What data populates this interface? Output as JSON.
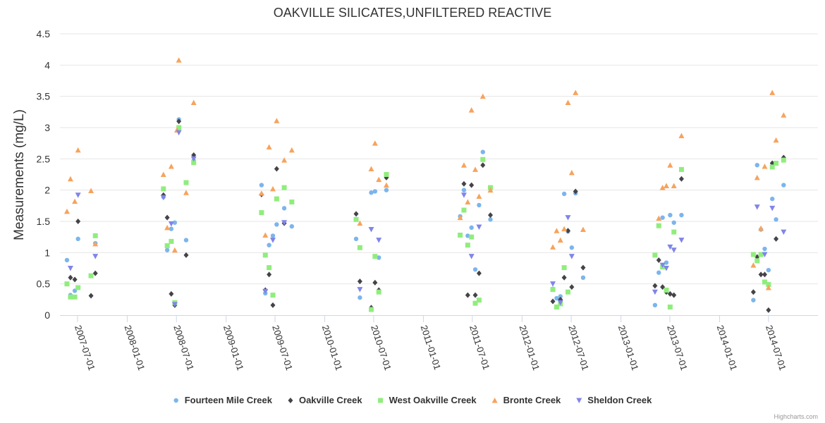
{
  "chart_data": {
    "type": "scatter",
    "title": "OAKVILLE SILICATES,UNFILTERED REACTIVE",
    "ylabel": "Measurements (mg/L)",
    "xlabel": "",
    "ylim": [
      0,
      4.5
    ],
    "yticks": [
      "0",
      "0.5",
      "1",
      "1.5",
      "2",
      "2.5",
      "3",
      "3.5",
      "4",
      "4.5"
    ],
    "xlim": [
      "2007-04-27",
      "2014-12-31"
    ],
    "xticks": [
      "2007-07-01",
      "2008-01-01",
      "2008-07-01",
      "2009-01-01",
      "2009-07-01",
      "2010-01-01",
      "2010-07-01",
      "2011-01-01",
      "2011-07-01",
      "2012-01-01",
      "2012-07-01",
      "2013-01-01",
      "2013-07-01",
      "2014-01-01",
      "2014-07-01"
    ],
    "grid": "horizontal",
    "legend_position": "bottom",
    "credits": "Highcharts.com",
    "series": [
      {
        "name": "Fourteen Mile Creek",
        "color": "#7cb5ec",
        "marker": "circle",
        "points": [
          [
            "2007-05-23",
            0.88
          ],
          [
            "2007-06-05",
            0.32
          ],
          [
            "2007-06-21",
            0.39
          ],
          [
            "2007-07-03",
            1.22
          ],
          [
            "2007-09-05",
            1.15
          ],
          [
            "2008-05-14",
            1.89
          ],
          [
            "2008-05-28",
            1.04
          ],
          [
            "2008-06-12",
            1.38
          ],
          [
            "2008-06-25",
            1.48
          ],
          [
            "2008-07-10",
            3.13
          ],
          [
            "2008-08-06",
            1.2
          ],
          [
            "2008-09-03",
            2.47
          ],
          [
            "2009-05-12",
            2.08
          ],
          [
            "2009-05-26",
            0.35
          ],
          [
            "2009-06-09",
            1.12
          ],
          [
            "2009-06-23",
            1.27
          ],
          [
            "2009-07-07",
            1.45
          ],
          [
            "2009-08-04",
            1.71
          ],
          [
            "2009-09-01",
            1.42
          ],
          [
            "2010-04-27",
            1.22
          ],
          [
            "2010-05-11",
            0.28
          ],
          [
            "2010-06-22",
            1.96
          ],
          [
            "2010-07-06",
            1.98
          ],
          [
            "2010-07-20",
            0.92
          ],
          [
            "2010-08-17",
            2.0
          ],
          [
            "2011-05-17",
            1.58
          ],
          [
            "2011-05-31",
            2.0
          ],
          [
            "2011-06-14",
            1.27
          ],
          [
            "2011-06-28",
            1.4
          ],
          [
            "2011-07-12",
            0.73
          ],
          [
            "2011-07-26",
            1.76
          ],
          [
            "2011-08-09",
            2.61
          ],
          [
            "2011-09-06",
            1.53
          ],
          [
            "2012-04-24",
            0.42
          ],
          [
            "2012-05-08",
            0.27
          ],
          [
            "2012-05-22",
            0.3
          ],
          [
            "2012-06-05",
            1.94
          ],
          [
            "2012-06-19",
            1.34
          ],
          [
            "2012-07-03",
            1.08
          ],
          [
            "2012-07-17",
            1.95
          ],
          [
            "2012-08-14",
            0.6
          ],
          [
            "2013-05-07",
            0.16
          ],
          [
            "2013-05-21",
            0.68
          ],
          [
            "2013-06-04",
            1.56
          ],
          [
            "2013-06-18",
            0.84
          ],
          [
            "2013-07-02",
            1.6
          ],
          [
            "2013-07-16",
            1.48
          ],
          [
            "2013-08-13",
            1.6
          ],
          [
            "2014-05-06",
            0.24
          ],
          [
            "2014-05-20",
            2.4
          ],
          [
            "2014-06-03",
            1.37
          ],
          [
            "2014-06-17",
            1.06
          ],
          [
            "2014-07-01",
            0.72
          ],
          [
            "2014-07-15",
            1.86
          ],
          [
            "2014-07-29",
            1.53
          ],
          [
            "2014-08-26",
            2.08
          ]
        ]
      },
      {
        "name": "Oakville Creek",
        "color": "#434348",
        "marker": "diamond",
        "points": [
          [
            "2007-06-05",
            0.6
          ],
          [
            "2007-06-21",
            0.57
          ],
          [
            "2007-07-03",
            1.5
          ],
          [
            "2007-08-20",
            0.31
          ],
          [
            "2007-09-05",
            0.67
          ],
          [
            "2008-05-14",
            1.92
          ],
          [
            "2008-05-28",
            1.56
          ],
          [
            "2008-06-12",
            0.34
          ],
          [
            "2008-06-25",
            0.16
          ],
          [
            "2008-07-10",
            3.1
          ],
          [
            "2008-08-06",
            0.96
          ],
          [
            "2008-09-03",
            2.56
          ],
          [
            "2009-05-12",
            1.93
          ],
          [
            "2009-05-26",
            0.4
          ],
          [
            "2009-06-09",
            0.65
          ],
          [
            "2009-06-23",
            0.16
          ],
          [
            "2009-07-07",
            2.34
          ],
          [
            "2009-08-04",
            1.47
          ],
          [
            "2010-04-27",
            1.62
          ],
          [
            "2010-05-11",
            0.54
          ],
          [
            "2010-06-22",
            0.12
          ],
          [
            "2010-07-06",
            0.52
          ],
          [
            "2010-07-20",
            0.4
          ],
          [
            "2010-08-17",
            2.2
          ],
          [
            "2011-05-31",
            2.1
          ],
          [
            "2011-06-14",
            0.32
          ],
          [
            "2011-06-28",
            2.08
          ],
          [
            "2011-07-12",
            0.32
          ],
          [
            "2011-07-26",
            0.67
          ],
          [
            "2011-08-09",
            2.4
          ],
          [
            "2011-09-06",
            1.6
          ],
          [
            "2012-04-24",
            0.22
          ],
          [
            "2012-05-22",
            0.25
          ],
          [
            "2012-06-05",
            0.6
          ],
          [
            "2012-06-19",
            1.35
          ],
          [
            "2012-07-03",
            0.45
          ],
          [
            "2012-07-17",
            1.98
          ],
          [
            "2012-08-14",
            0.76
          ],
          [
            "2013-05-07",
            0.47
          ],
          [
            "2013-05-21",
            0.88
          ],
          [
            "2013-06-04",
            0.45
          ],
          [
            "2013-06-18",
            0.37
          ],
          [
            "2013-07-02",
            0.34
          ],
          [
            "2013-07-16",
            0.32
          ],
          [
            "2013-08-13",
            2.18
          ],
          [
            "2014-05-06",
            0.37
          ],
          [
            "2014-05-20",
            0.93
          ],
          [
            "2014-06-03",
            0.65
          ],
          [
            "2014-06-17",
            0.65
          ],
          [
            "2014-07-01",
            0.08
          ],
          [
            "2014-07-15",
            2.43
          ],
          [
            "2014-07-29",
            1.22
          ],
          [
            "2014-08-26",
            2.52
          ]
        ]
      },
      {
        "name": "West Oakville Creek",
        "color": "#90ed7d",
        "marker": "square",
        "points": [
          [
            "2007-05-23",
            0.5
          ],
          [
            "2007-06-05",
            0.29
          ],
          [
            "2007-06-21",
            0.29
          ],
          [
            "2007-07-03",
            0.44
          ],
          [
            "2007-08-20",
            0.63
          ],
          [
            "2007-09-05",
            1.27
          ],
          [
            "2008-05-14",
            2.02
          ],
          [
            "2008-05-28",
            1.11
          ],
          [
            "2008-06-12",
            1.18
          ],
          [
            "2008-06-25",
            0.2
          ],
          [
            "2008-07-10",
            3.0
          ],
          [
            "2008-08-06",
            2.12
          ],
          [
            "2008-09-03",
            2.44
          ],
          [
            "2009-05-12",
            1.64
          ],
          [
            "2009-05-26",
            0.96
          ],
          [
            "2009-06-09",
            0.76
          ],
          [
            "2009-06-23",
            0.32
          ],
          [
            "2009-07-07",
            1.86
          ],
          [
            "2009-08-04",
            2.04
          ],
          [
            "2009-09-01",
            1.81
          ],
          [
            "2010-04-27",
            1.53
          ],
          [
            "2010-05-11",
            1.08
          ],
          [
            "2010-06-22",
            0.09
          ],
          [
            "2010-07-06",
            0.94
          ],
          [
            "2010-07-20",
            0.37
          ],
          [
            "2010-08-17",
            2.25
          ],
          [
            "2011-05-17",
            1.28
          ],
          [
            "2011-05-31",
            1.68
          ],
          [
            "2011-06-14",
            1.12
          ],
          [
            "2011-06-28",
            1.25
          ],
          [
            "2011-07-12",
            0.19
          ],
          [
            "2011-07-26",
            0.24
          ],
          [
            "2011-08-09",
            2.49
          ],
          [
            "2011-09-06",
            2.04
          ],
          [
            "2012-04-24",
            0.41
          ],
          [
            "2012-05-08",
            0.13
          ],
          [
            "2012-05-22",
            0.18
          ],
          [
            "2012-06-05",
            0.76
          ],
          [
            "2012-06-19",
            0.37
          ],
          [
            "2013-05-07",
            0.96
          ],
          [
            "2013-05-21",
            1.43
          ],
          [
            "2013-06-04",
            0.77
          ],
          [
            "2013-06-18",
            0.4
          ],
          [
            "2013-07-02",
            0.13
          ],
          [
            "2013-07-16",
            1.33
          ],
          [
            "2013-08-13",
            2.33
          ],
          [
            "2014-05-06",
            0.97
          ],
          [
            "2014-05-20",
            0.87
          ],
          [
            "2014-06-03",
            0.97
          ],
          [
            "2014-06-17",
            0.53
          ],
          [
            "2014-07-01",
            0.49
          ],
          [
            "2014-07-15",
            2.37
          ],
          [
            "2014-07-29",
            2.43
          ],
          [
            "2014-08-26",
            2.48
          ]
        ]
      },
      {
        "name": "Bronte Creek",
        "color": "#f7a35c",
        "marker": "triangle",
        "points": [
          [
            "2007-05-23",
            1.66
          ],
          [
            "2007-06-05",
            2.18
          ],
          [
            "2007-06-21",
            1.82
          ],
          [
            "2007-07-03",
            2.64
          ],
          [
            "2007-08-20",
            1.99
          ],
          [
            "2007-09-05",
            1.14
          ],
          [
            "2008-05-14",
            2.25
          ],
          [
            "2008-05-28",
            1.4
          ],
          [
            "2008-06-12",
            2.38
          ],
          [
            "2008-06-25",
            1.04
          ],
          [
            "2008-07-03",
            2.96
          ],
          [
            "2008-07-10",
            4.08
          ],
          [
            "2008-08-06",
            1.96
          ],
          [
            "2008-09-03",
            3.4
          ],
          [
            "2009-05-12",
            1.95
          ],
          [
            "2009-05-26",
            1.28
          ],
          [
            "2009-06-09",
            2.69
          ],
          [
            "2009-06-23",
            2.02
          ],
          [
            "2009-07-07",
            3.11
          ],
          [
            "2009-08-04",
            2.48
          ],
          [
            "2009-09-01",
            2.64
          ],
          [
            "2010-05-11",
            1.47
          ],
          [
            "2010-06-22",
            2.34
          ],
          [
            "2010-07-06",
            2.75
          ],
          [
            "2010-07-20",
            2.17
          ],
          [
            "2010-08-17",
            2.08
          ],
          [
            "2011-05-17",
            1.56
          ],
          [
            "2011-05-31",
            2.4
          ],
          [
            "2011-06-14",
            1.81
          ],
          [
            "2011-06-28",
            3.28
          ],
          [
            "2011-07-12",
            2.33
          ],
          [
            "2011-07-26",
            1.9
          ],
          [
            "2011-08-09",
            3.5
          ],
          [
            "2011-09-06",
            2.0
          ],
          [
            "2012-04-24",
            1.09
          ],
          [
            "2012-05-08",
            1.35
          ],
          [
            "2012-05-22",
            1.2
          ],
          [
            "2012-06-05",
            1.38
          ],
          [
            "2012-06-19",
            3.4
          ],
          [
            "2012-07-03",
            2.28
          ],
          [
            "2012-07-17",
            3.56
          ],
          [
            "2012-08-14",
            1.37
          ],
          [
            "2013-05-21",
            1.55
          ],
          [
            "2013-06-04",
            2.04
          ],
          [
            "2013-06-18",
            2.07
          ],
          [
            "2013-07-02",
            2.4
          ],
          [
            "2013-07-16",
            2.07
          ],
          [
            "2013-08-13",
            2.87
          ],
          [
            "2014-05-06",
            0.8
          ],
          [
            "2014-05-20",
            2.2
          ],
          [
            "2014-06-03",
            1.39
          ],
          [
            "2014-06-17",
            2.38
          ],
          [
            "2014-07-01",
            0.44
          ],
          [
            "2014-07-15",
            3.56
          ],
          [
            "2014-07-29",
            2.8
          ],
          [
            "2014-08-26",
            3.2
          ]
        ]
      },
      {
        "name": "Sheldon Creek",
        "color": "#8085e9",
        "marker": "triangle-down",
        "points": [
          [
            "2007-06-05",
            0.75
          ],
          [
            "2007-07-03",
            1.92
          ],
          [
            "2007-09-05",
            0.94
          ],
          [
            "2008-05-14",
            1.88
          ],
          [
            "2008-06-12",
            1.46
          ],
          [
            "2008-06-25",
            0.17
          ],
          [
            "2008-07-10",
            2.92
          ],
          [
            "2008-09-03",
            2.5
          ],
          [
            "2009-05-26",
            0.38
          ],
          [
            "2009-06-23",
            1.2
          ],
          [
            "2009-08-04",
            1.48
          ],
          [
            "2010-05-11",
            0.41
          ],
          [
            "2010-06-22",
            1.37
          ],
          [
            "2010-07-20",
            1.2
          ],
          [
            "2011-05-31",
            1.92
          ],
          [
            "2011-06-28",
            0.94
          ],
          [
            "2011-07-26",
            1.41
          ],
          [
            "2012-04-24",
            0.5
          ],
          [
            "2012-05-22",
            0.2
          ],
          [
            "2012-06-19",
            1.56
          ],
          [
            "2012-07-03",
            0.94
          ],
          [
            "2013-05-07",
            0.37
          ],
          [
            "2013-06-04",
            0.8
          ],
          [
            "2013-06-18",
            0.75
          ],
          [
            "2013-07-02",
            1.09
          ],
          [
            "2013-07-16",
            1.04
          ],
          [
            "2013-08-13",
            1.2
          ],
          [
            "2014-05-20",
            1.73
          ],
          [
            "2014-06-17",
            0.97
          ],
          [
            "2014-07-15",
            1.71
          ],
          [
            "2014-08-26",
            1.33
          ]
        ]
      }
    ]
  }
}
